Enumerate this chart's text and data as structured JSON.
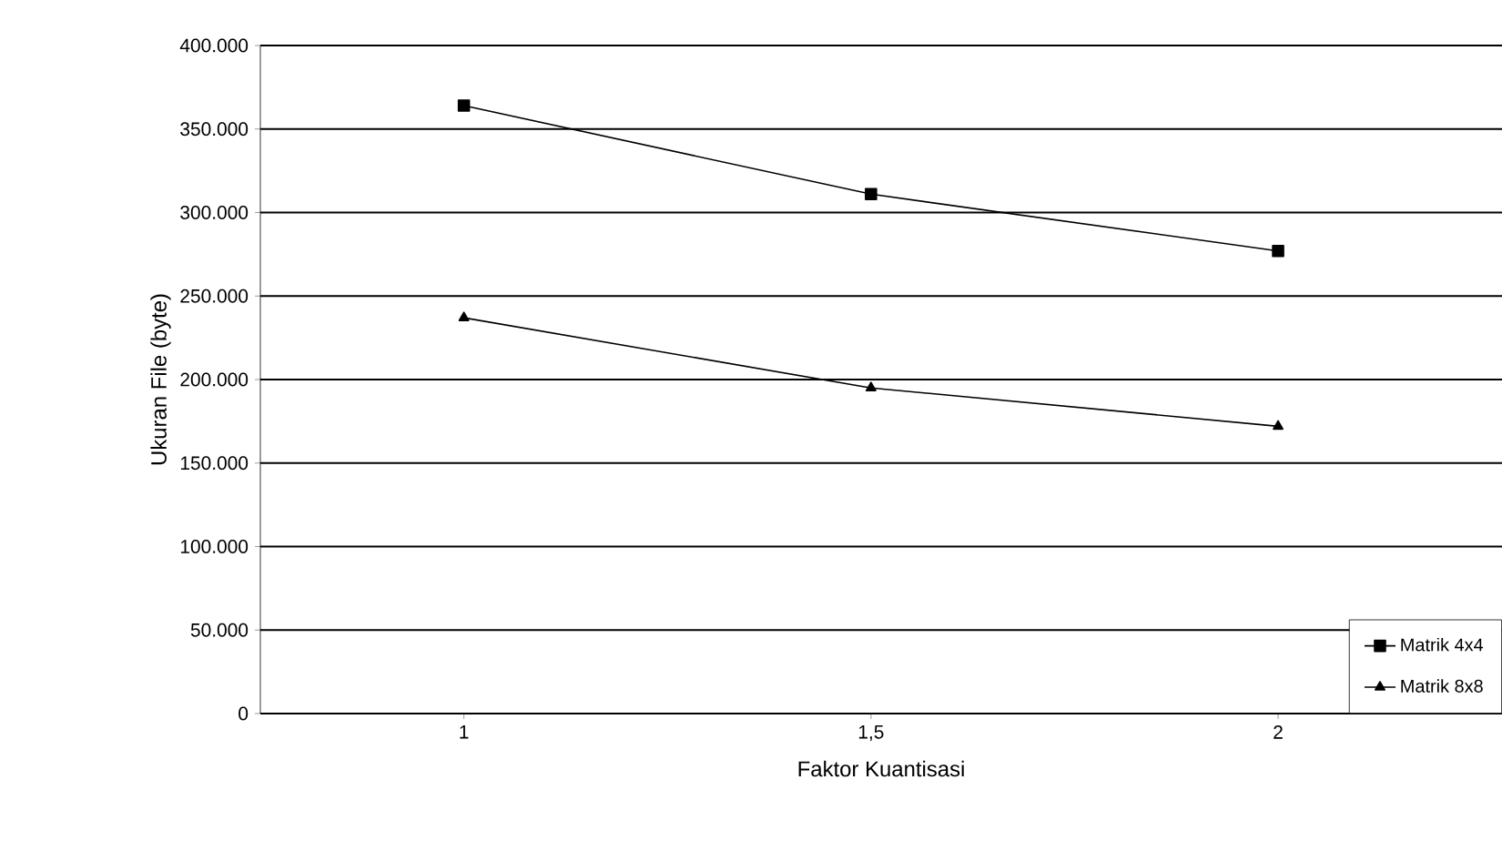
{
  "chart_data": {
    "type": "line",
    "xlabel": "Faktor Kuantisasi",
    "ylabel": "Ukuran File (byte)",
    "categories": [
      "1",
      "1,5",
      "2"
    ],
    "series": [
      {
        "name": "Matrik 4x4",
        "color": "#000000",
        "marker": "square",
        "values": [
          364000,
          311000,
          277000
        ]
      },
      {
        "name": "Matrik 8x8",
        "color": "#000000",
        "marker": "triangle",
        "values": [
          237000,
          195000,
          172000
        ]
      }
    ],
    "ylim": [
      0,
      400000
    ],
    "yticks": [
      {
        "value": 0,
        "label": "0"
      },
      {
        "value": 50000,
        "label": "50.000"
      },
      {
        "value": 100000,
        "label": "100.000"
      },
      {
        "value": 150000,
        "label": "150.000"
      },
      {
        "value": 200000,
        "label": "200.000"
      },
      {
        "value": 250000,
        "label": "250.000"
      },
      {
        "value": 300000,
        "label": "300.000"
      },
      {
        "value": 350000,
        "label": "350.000"
      },
      {
        "value": 400000,
        "label": "400.000"
      }
    ],
    "grid": "y",
    "legend": "bottom right",
    "line_style": "solid"
  }
}
